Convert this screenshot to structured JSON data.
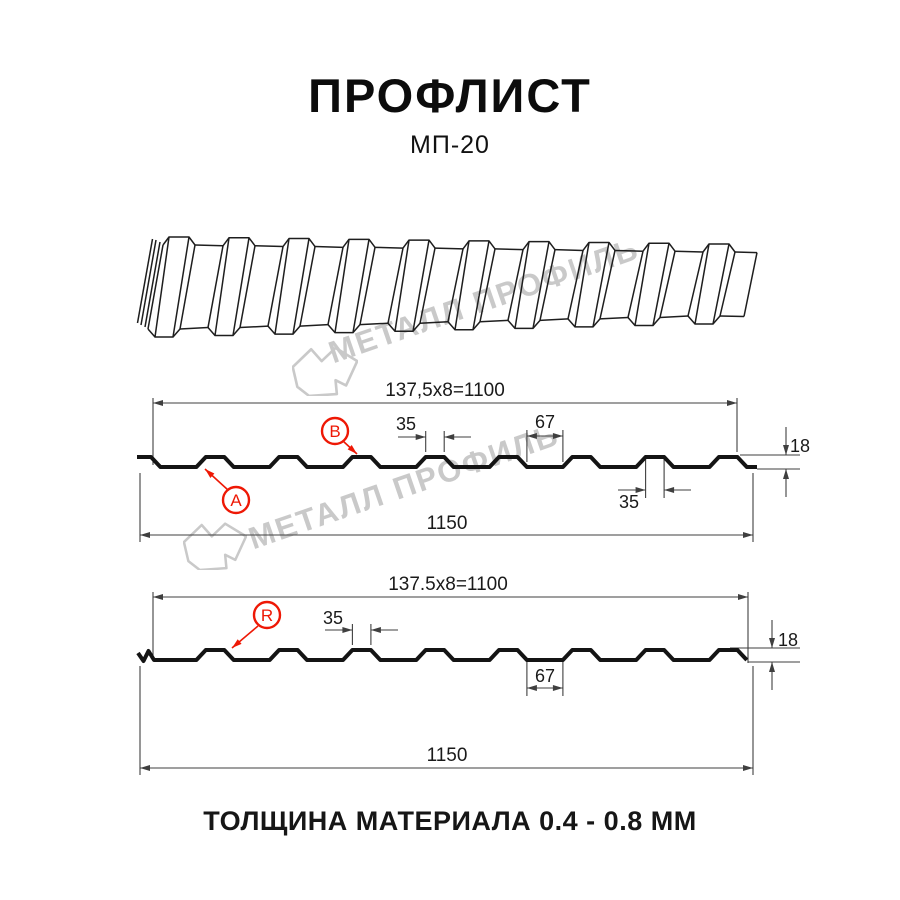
{
  "title": "ПРОФЛИСТ",
  "subtitle": "МП-20",
  "footer": "ТОЛЩИНА МАТЕРИАЛА 0.4 - 0.8 ММ",
  "watermark": {
    "text": "МЕТАЛЛ ПРОФИЛЬ"
  },
  "colors": {
    "accent_red": "#ee1805",
    "line_black": "#151515",
    "dim_gray": "#3f3f3f",
    "watermark_gray": "#c9c9c9"
  },
  "diagram1": {
    "label_a": "A",
    "label_b": "B",
    "dims": {
      "working_width": "137,5x8=1100",
      "rib_top_width": "35",
      "valley_width": "67",
      "rib_bottom_width": "35",
      "full_width": "1150",
      "height": "18"
    }
  },
  "diagram2": {
    "label_r": "R",
    "dims": {
      "working_width": "137.5x8=1100",
      "rib_top_width": "35",
      "valley_width": "67",
      "full_width": "1150",
      "height": "18"
    }
  }
}
